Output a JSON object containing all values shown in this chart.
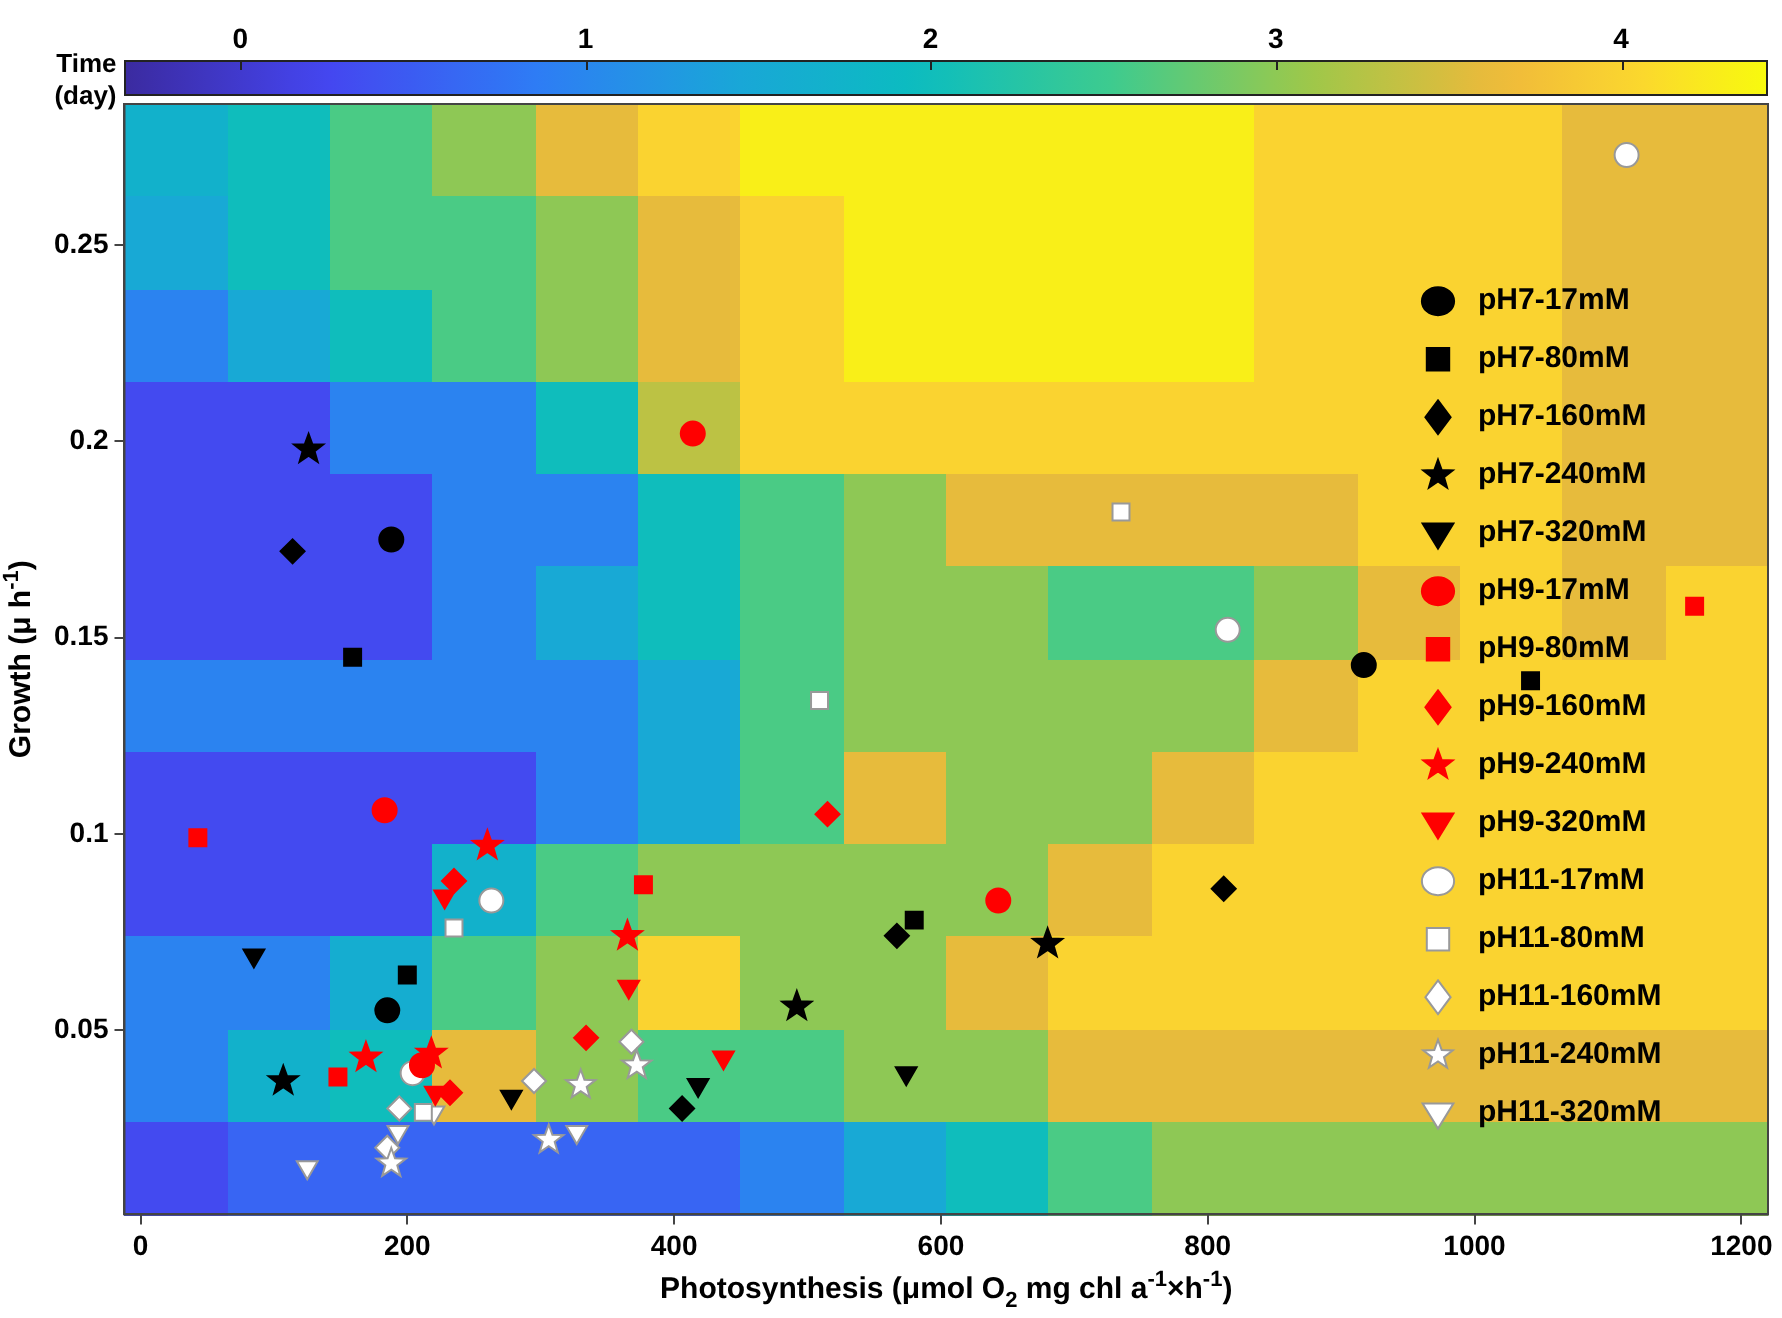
{
  "chart_data": [
    {
      "type": "heatmap",
      "clabel": "Time (day)",
      "clim": [
        -0.33,
        4.42
      ],
      "cticks": [
        0,
        1,
        2,
        3,
        4
      ],
      "categories": [
        null,
        null,
        null,
        null,
        null,
        null,
        null,
        null,
        null,
        null,
        null,
        null,
        null,
        null,
        null,
        null
      ],
      "y_categories": [
        null,
        null,
        null,
        null,
        null,
        null,
        null,
        null,
        null,
        null,
        null,
        null
      ],
      "cells": [
        [
          1.7,
          2.0,
          2.6,
          3.0,
          3.6,
          4.0,
          4.3,
          4.3,
          4.3,
          4.3,
          4.3,
          4.0,
          4.0,
          4.0,
          3.6,
          3.6
        ],
        [
          1.5,
          2.0,
          2.6,
          2.6,
          3.0,
          3.6,
          4.0,
          4.3,
          4.3,
          4.3,
          4.3,
          4.0,
          4.0,
          4.0,
          3.6,
          3.6
        ],
        [
          0.95,
          1.5,
          2.0,
          2.6,
          3.0,
          3.6,
          4.0,
          4.3,
          4.3,
          4.3,
          4.3,
          4.0,
          4.0,
          4.0,
          3.6,
          3.6
        ],
        [
          0.3,
          0.3,
          0.95,
          0.95,
          2.0,
          3.3,
          4.0,
          4.0,
          4.0,
          4.0,
          4.0,
          4.0,
          4.0,
          4.0,
          3.6,
          3.6
        ],
        [
          0.3,
          0.3,
          0.3,
          0.95,
          0.95,
          2.0,
          2.6,
          3.0,
          3.6,
          3.6,
          3.6,
          3.6,
          4.0,
          4.0,
          3.6,
          3.6
        ],
        [
          0.3,
          0.3,
          0.3,
          0.95,
          1.5,
          2.0,
          2.6,
          3.0,
          3.0,
          2.6,
          2.6,
          3.0,
          3.6,
          4.0,
          3.6,
          4.0
        ],
        [
          0.95,
          0.95,
          0.95,
          0.95,
          0.95,
          1.5,
          2.6,
          3.0,
          3.0,
          3.0,
          3.0,
          3.6,
          4.0,
          4.0,
          4.0,
          4.0
        ],
        [
          0.3,
          0.3,
          0.3,
          0.3,
          0.95,
          1.5,
          2.6,
          3.6,
          3.0,
          3.0,
          3.6,
          4.0,
          4.0,
          4.0,
          4.0,
          4.0
        ],
        [
          0.3,
          0.3,
          0.3,
          1.7,
          2.6,
          3.0,
          3.0,
          3.0,
          3.0,
          3.6,
          4.0,
          4.0,
          4.0,
          4.0,
          4.0,
          4.0
        ],
        [
          0.95,
          0.95,
          1.6,
          2.6,
          3.0,
          4.0,
          3.0,
          3.0,
          3.6,
          4.0,
          4.0,
          4.0,
          4.0,
          4.0,
          4.0,
          4.0
        ],
        [
          0.95,
          1.7,
          2.0,
          3.6,
          3.0,
          2.6,
          2.6,
          3.0,
          3.0,
          3.6,
          3.6,
          3.6,
          3.6,
          3.6,
          3.6,
          3.6
        ],
        [
          0.3,
          0.6,
          0.6,
          0.6,
          0.6,
          0.6,
          0.95,
          1.5,
          2.0,
          2.6,
          3.0,
          3.0,
          3.0,
          3.0,
          3.0,
          3.0
        ]
      ]
    },
    {
      "type": "scatter",
      "xlabel": "Photosynthesis (μmol O$_{2}$ mg chl a$^{-1}$×h$^{-1}$)",
      "ylabel": "Growth (μ h$^{-1}$)",
      "xlim": [
        -12,
        1220
      ],
      "xticks": [
        0,
        200,
        400,
        600,
        800,
        1000,
        1200
      ],
      "ylim": [
        0.003,
        0.286
      ],
      "yticks": [
        0.05,
        0.1,
        0.15,
        0.2,
        0.25
      ],
      "grid": false,
      "legend": "right",
      "series": [
        {
          "name": "pH7-17mM",
          "type": "scatter",
          "marker": "circle",
          "color": "#000000",
          "x": [
            188,
            185,
            917
          ],
          "values": [
            0.175,
            0.055,
            0.143
          ]
        },
        {
          "name": "pH7-80mM",
          "type": "scatter",
          "marker": "square",
          "color": "#000000",
          "x": [
            159,
            200,
            580,
            1042
          ],
          "values": [
            0.145,
            0.064,
            0.078,
            0.139
          ]
        },
        {
          "name": "pH7-160mM",
          "type": "scatter",
          "marker": "diamond",
          "color": "#000000",
          "x": [
            114,
            567,
            406,
            812
          ],
          "values": [
            0.172,
            0.074,
            0.03,
            0.086
          ]
        },
        {
          "name": "pH7-240mM",
          "type": "scatter",
          "marker": "star",
          "color": "#000000",
          "x": [
            126,
            107,
            492,
            680
          ],
          "values": [
            0.198,
            0.037,
            0.056,
            0.072
          ]
        },
        {
          "name": "pH7-320mM",
          "type": "scatter",
          "marker": "triangle",
          "color": "#000000",
          "x": [
            85,
            278,
            418,
            574
          ],
          "values": [
            0.069,
            0.033,
            0.036,
            0.039
          ]
        },
        {
          "name": "pH9-17mM",
          "type": "scatter",
          "marker": "circle",
          "color": "#ff0000",
          "x": [
            183,
            211,
            414,
            643
          ],
          "values": [
            0.106,
            0.041,
            0.202,
            0.083
          ]
        },
        {
          "name": "pH9-80mM",
          "type": "scatter",
          "marker": "square",
          "color": "#ff0000",
          "x": [
            43,
            148,
            377,
            1165
          ],
          "values": [
            0.099,
            0.038,
            0.087,
            0.158
          ]
        },
        {
          "name": "pH9-160mM",
          "type": "scatter",
          "marker": "diamond",
          "color": "#ff0000",
          "x": [
            235,
            232,
            334,
            515
          ],
          "values": [
            0.088,
            0.034,
            0.048,
            0.105
          ]
        },
        {
          "name": "pH9-240mM",
          "type": "scatter",
          "marker": "star",
          "color": "#ff0000",
          "x": [
            260,
            169,
            218,
            365
          ],
          "values": [
            0.097,
            0.043,
            0.044,
            0.074
          ]
        },
        {
          "name": "pH9-320mM",
          "type": "scatter",
          "marker": "triangle",
          "color": "#ff0000",
          "x": [
            228,
            221,
            366,
            437
          ],
          "values": [
            0.084,
            0.034,
            0.061,
            0.043
          ]
        },
        {
          "name": "pH11-17mM",
          "type": "scatter",
          "marker": "circle",
          "color": "#ffffff",
          "x": [
            263,
            204,
            815,
            1114
          ],
          "values": [
            0.083,
            0.039,
            0.152,
            0.273
          ]
        },
        {
          "name": "pH11-80mM",
          "type": "scatter",
          "marker": "square",
          "color": "#ffffff",
          "x": [
            235,
            212,
            509,
            735
          ],
          "values": [
            0.076,
            0.029,
            0.134,
            0.182
          ]
        },
        {
          "name": "pH11-160mM",
          "type": "scatter",
          "marker": "diamond",
          "color": "#ffffff",
          "x": [
            194,
            185,
            295,
            368
          ],
          "values": [
            0.03,
            0.02,
            0.037,
            0.047
          ]
        },
        {
          "name": "pH11-240mM",
          "type": "scatter",
          "marker": "star",
          "color": "#ffffff",
          "x": [
            188,
            306,
            330,
            372
          ],
          "values": [
            0.016,
            0.022,
            0.036,
            0.041
          ]
        },
        {
          "name": "pH11-320mM",
          "type": "scatter",
          "marker": "triangle",
          "color": "#ffffff",
          "x": [
            125,
            193,
            220,
            327
          ],
          "values": [
            0.015,
            0.024,
            0.029,
            0.024
          ]
        }
      ]
    }
  ]
}
